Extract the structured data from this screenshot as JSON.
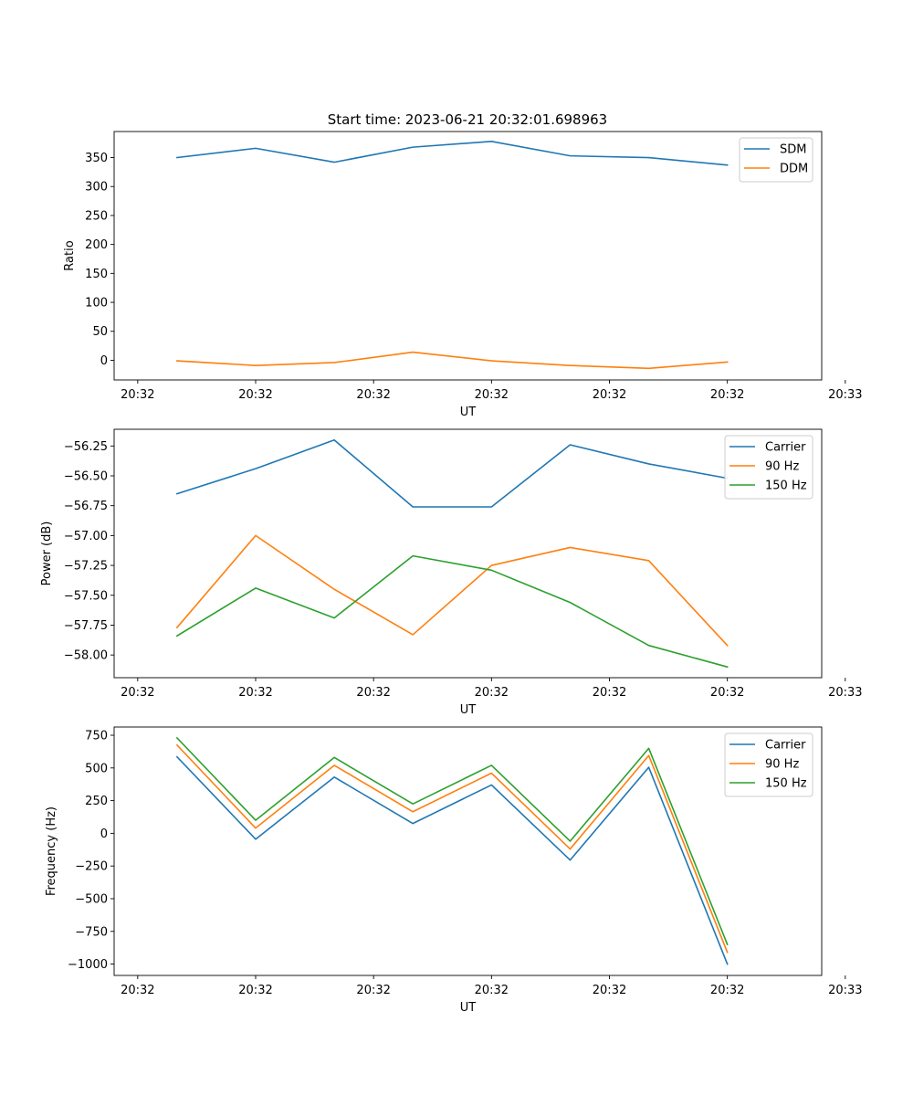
{
  "chart_data": [
    {
      "type": "line",
      "title": "Start time: 2023-06-21 20:32:01.698963",
      "xlabel": "UT",
      "ylabel": "Ratio",
      "x": [
        1,
        2,
        3,
        4,
        5,
        6,
        7,
        8
      ],
      "xlim": [
        0.2,
        9.2
      ],
      "x_ticks": [
        0.5,
        2,
        3.5,
        5,
        6.5,
        8,
        9.5
      ],
      "x_tick_labels": [
        "20:32",
        "20:32",
        "20:32",
        "20:32",
        "20:32",
        "20:32",
        "20:33"
      ],
      "ylim": [
        -34,
        395
      ],
      "y_ticks": [
        0,
        50,
        100,
        150,
        200,
        250,
        300,
        350
      ],
      "grid": false,
      "legend": "top-right",
      "series": [
        {
          "name": "SDM",
          "color": "#1f77b4",
          "values": [
            350,
            366,
            342,
            368,
            378,
            353,
            350,
            337
          ]
        },
        {
          "name": "DDM",
          "color": "#ff7f0e",
          "values": [
            -1,
            -9,
            -4,
            14,
            -1,
            -9,
            -14,
            -3
          ]
        }
      ]
    },
    {
      "type": "line",
      "title": "",
      "xlabel": "UT",
      "ylabel": "Power (dB)",
      "x": [
        1,
        2,
        3,
        4,
        5,
        6,
        7,
        8
      ],
      "xlim": [
        0.2,
        9.2
      ],
      "x_ticks": [
        0.5,
        2,
        3.5,
        5,
        6.5,
        8,
        9.5
      ],
      "x_tick_labels": [
        "20:32",
        "20:32",
        "20:32",
        "20:32",
        "20:32",
        "20:32",
        "20:33"
      ],
      "ylim": [
        -58.19,
        -56.11
      ],
      "y_ticks": [
        -58.0,
        -57.75,
        -57.5,
        -57.25,
        -57.0,
        -56.75,
        -56.5,
        -56.25
      ],
      "y_tick_labels": [
        "−58.00",
        "−57.75",
        "−57.50",
        "−57.25",
        "−57.00",
        "−56.75",
        "−56.50",
        "−56.25"
      ],
      "grid": false,
      "legend": "top-right",
      "series": [
        {
          "name": "Carrier",
          "color": "#1f77b4",
          "values": [
            -56.65,
            -56.44,
            -56.2,
            -56.76,
            -56.76,
            -56.24,
            -56.4,
            -56.52
          ]
        },
        {
          "name": "90 Hz",
          "color": "#ff7f0e",
          "values": [
            -57.77,
            -57.0,
            -57.45,
            -57.83,
            -57.25,
            -57.1,
            -57.21,
            -57.92
          ]
        },
        {
          "name": "150 Hz",
          "color": "#2ca02c",
          "values": [
            -57.84,
            -57.44,
            -57.69,
            -57.17,
            -57.29,
            -57.56,
            -57.92,
            -58.1
          ]
        }
      ]
    },
    {
      "type": "line",
      "title": "",
      "xlabel": "UT",
      "ylabel": "Frequency (Hz)",
      "x": [
        1,
        2,
        3,
        4,
        5,
        6,
        7,
        8
      ],
      "xlim": [
        0.2,
        9.2
      ],
      "x_ticks": [
        0.5,
        2,
        3.5,
        5,
        6.5,
        8,
        9.5
      ],
      "x_tick_labels": [
        "20:32",
        "20:32",
        "20:32",
        "20:32",
        "20:32",
        "20:32",
        "20:33"
      ],
      "ylim": [
        -1087,
        813
      ],
      "y_ticks": [
        -1000,
        -750,
        -500,
        -250,
        0,
        250,
        500,
        750
      ],
      "y_tick_labels": [
        "−1000",
        "−750",
        "−500",
        "−250",
        "0",
        "250",
        "500",
        "750"
      ],
      "grid": false,
      "legend": "top-right",
      "series": [
        {
          "name": "Carrier",
          "color": "#1f77b4",
          "values": [
            585,
            -45,
            430,
            75,
            370,
            -205,
            505,
            -1000
          ]
        },
        {
          "name": "90 Hz",
          "color": "#ff7f0e",
          "values": [
            675,
            40,
            520,
            165,
            460,
            -120,
            595,
            -910
          ]
        },
        {
          "name": "150 Hz",
          "color": "#2ca02c",
          "values": [
            730,
            100,
            580,
            225,
            520,
            -60,
            650,
            -850
          ]
        }
      ]
    }
  ]
}
